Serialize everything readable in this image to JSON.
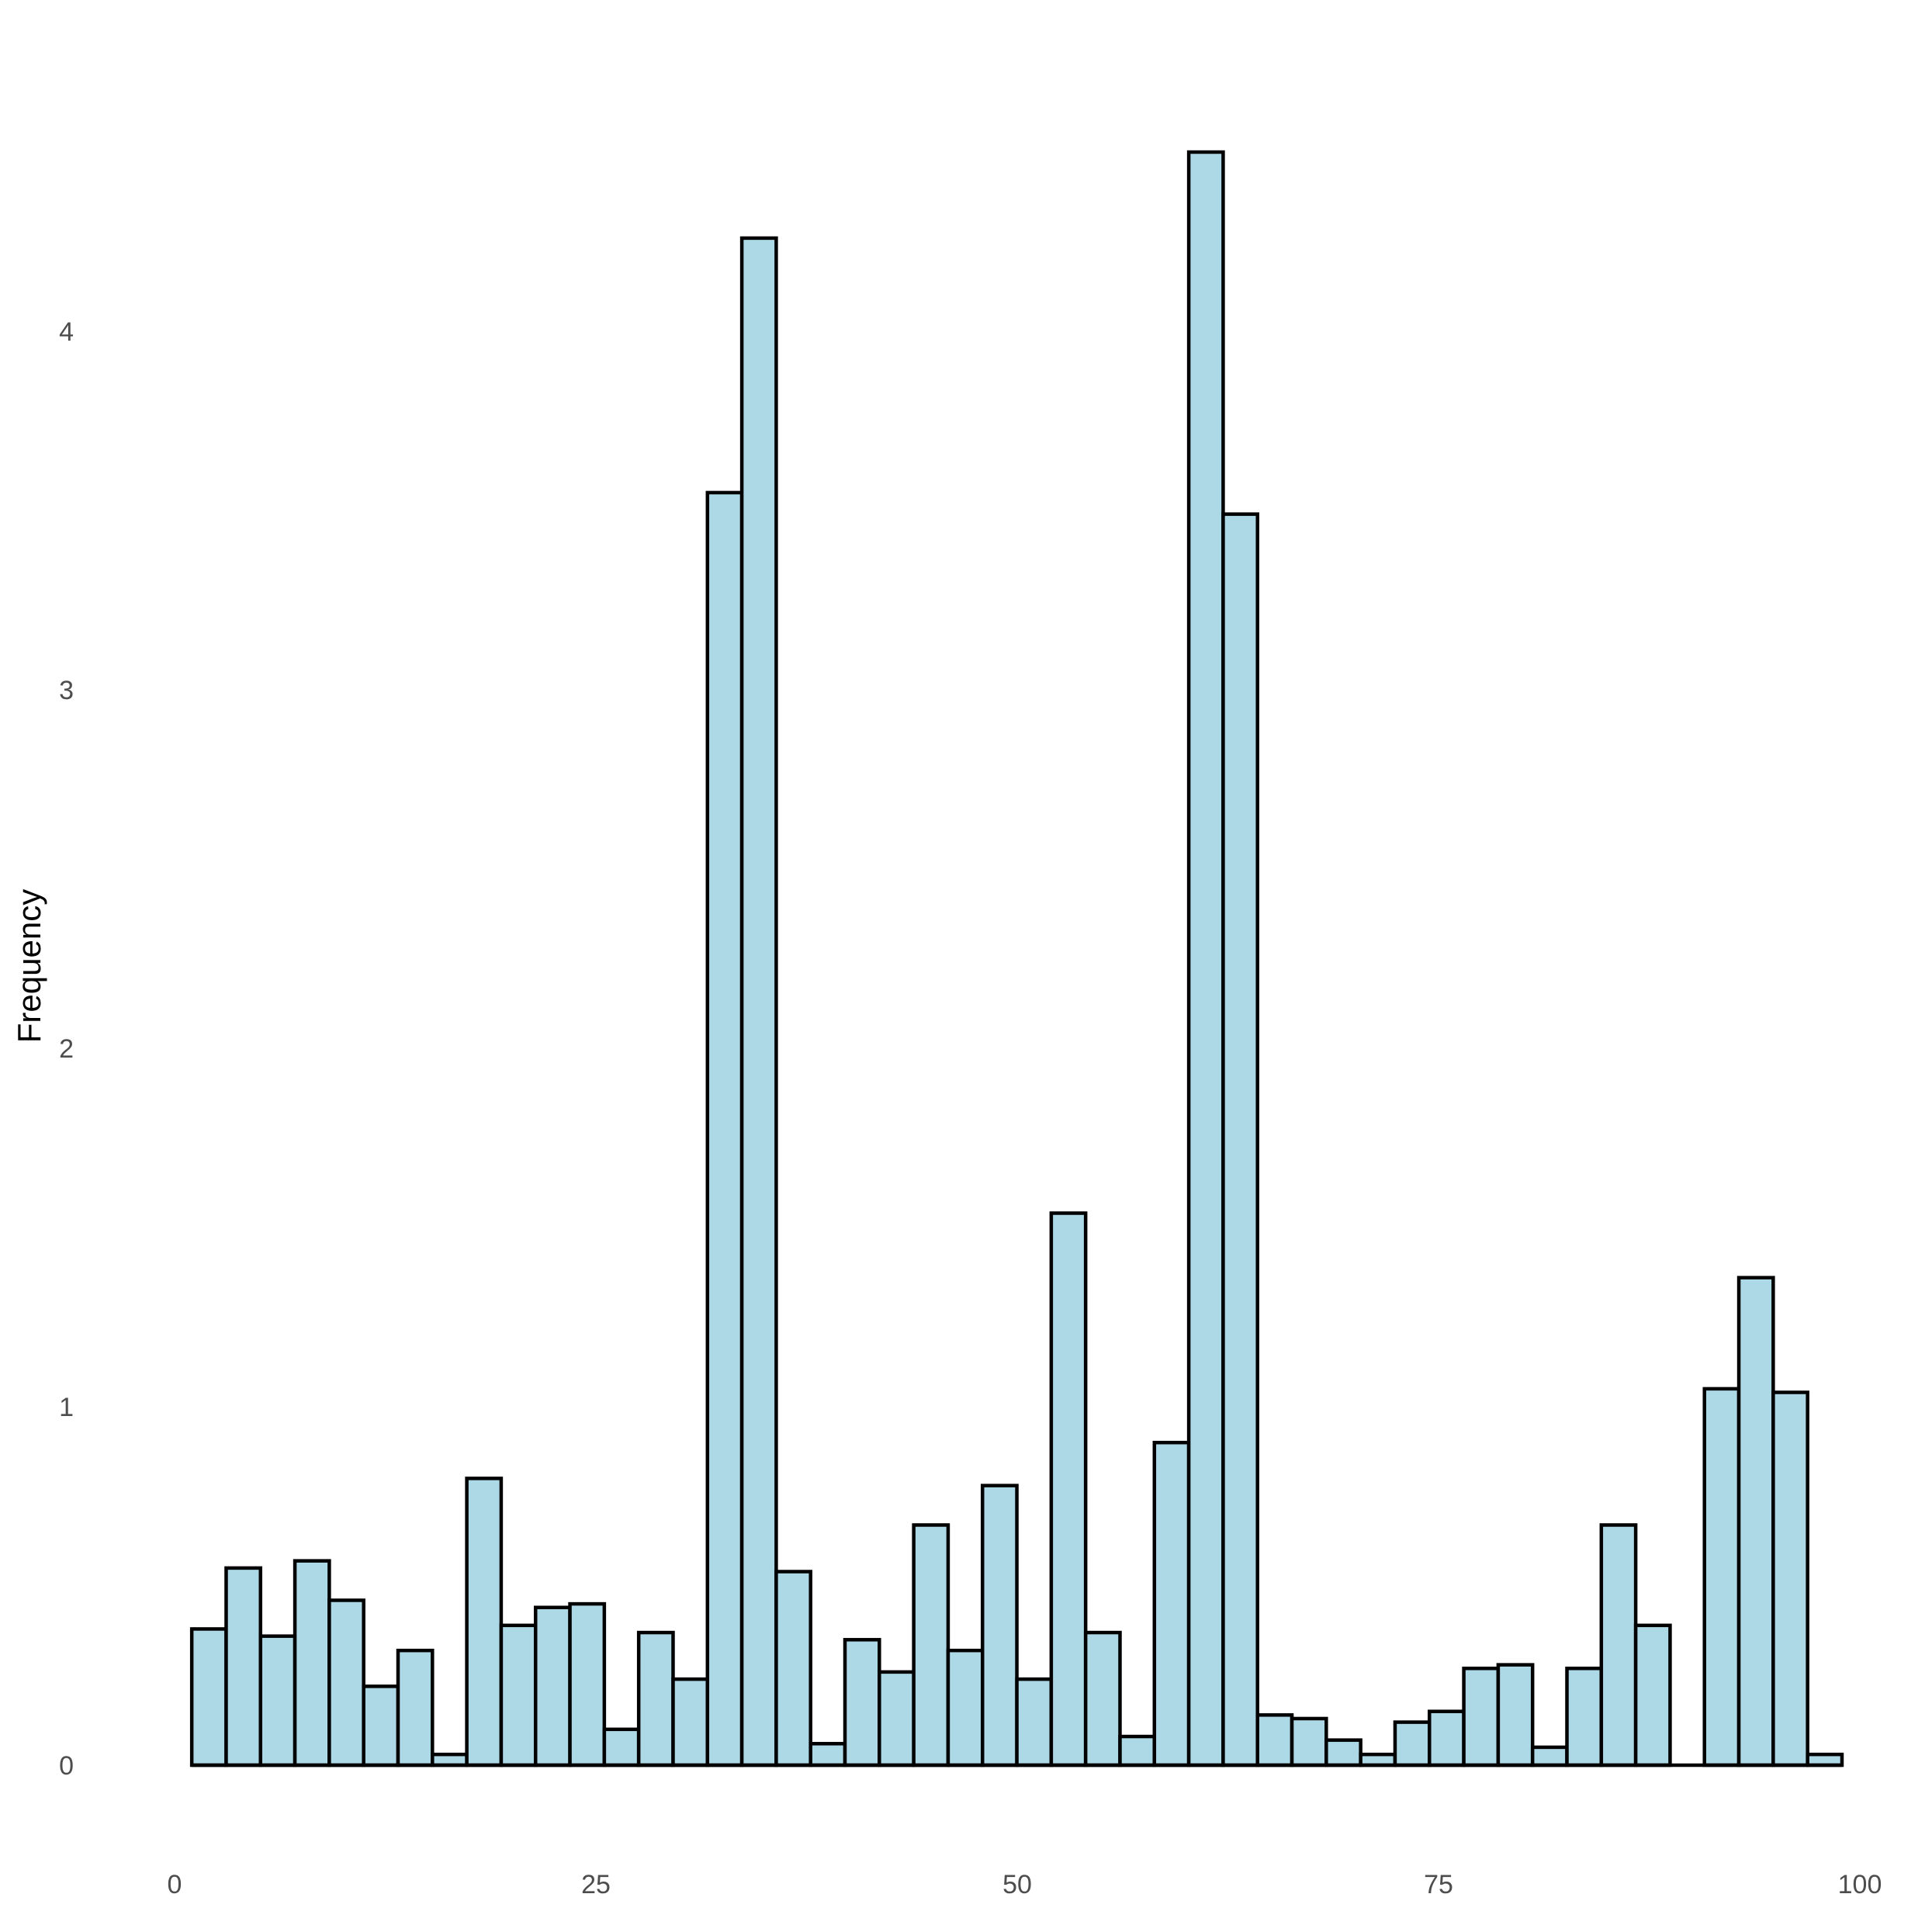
{
  "chart_data": {
    "type": "bar",
    "subtype": "histogram",
    "title": "",
    "xlabel": "",
    "ylabel": "Frequency",
    "xlim": [
      0,
      100
    ],
    "ylim": [
      0,
      4.6
    ],
    "x_ticks": [
      0,
      25,
      50,
      75,
      100
    ],
    "x_tick_labels": [
      "0",
      "25",
      "50",
      "75",
      "100"
    ],
    "y_ticks": [
      0,
      1,
      2,
      3,
      4
    ],
    "y_tick_labels": [
      "0",
      "1",
      "2",
      "3",
      "4"
    ],
    "grid": false,
    "legend": "none",
    "bar_fill": "#add8e6",
    "bar_edge": "#000000",
    "bin_width": 2.04,
    "bin_start": 1.02,
    "bins_left": [
      1.02,
      3.06,
      5.1,
      7.14,
      9.18,
      11.22,
      13.26,
      15.3,
      17.34,
      19.38,
      21.42,
      23.46,
      25.5,
      27.54,
      29.58,
      31.62,
      33.66,
      35.7,
      37.74,
      39.78,
      41.82,
      43.86,
      45.9,
      47.94,
      49.98,
      52.02,
      54.06,
      56.1,
      58.14,
      60.18,
      62.22,
      64.26,
      66.3,
      68.34,
      70.38,
      72.42,
      74.46,
      76.5,
      78.54,
      80.58,
      82.62,
      84.66,
      86.7,
      88.74,
      90.78,
      92.82,
      94.86,
      96.9
    ],
    "values": [
      0.38,
      0.55,
      0.36,
      0.57,
      0.46,
      0.22,
      0.32,
      0.03,
      0.8,
      0.39,
      0.44,
      0.45,
      0.1,
      0.37,
      0.24,
      3.55,
      4.26,
      0.54,
      0.06,
      0.35,
      0.26,
      0.67,
      0.32,
      0.78,
      0.24,
      1.54,
      0.37,
      0.08,
      0.9,
      4.5,
      3.49,
      0.14,
      0.13,
      0.07,
      0.03,
      0.12,
      0.15,
      0.27,
      0.28,
      0.05,
      0.27,
      0.67,
      0.39,
      0.0,
      1.05,
      1.36,
      1.04,
      0.03
    ]
  }
}
